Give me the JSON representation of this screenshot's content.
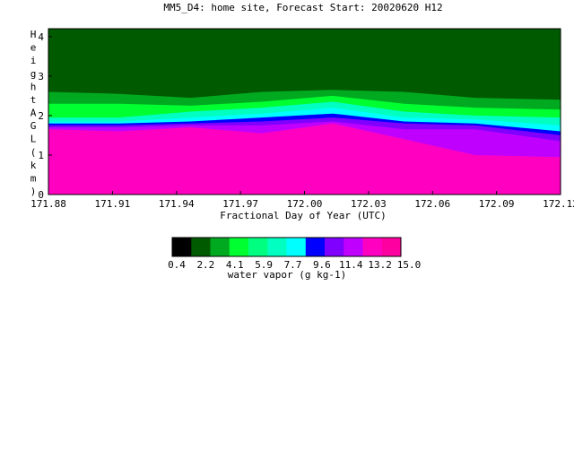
{
  "chart_data": {
    "type": "heatmap",
    "title": "MM5_D4: home site,  Forecast Start: 20020620 H12",
    "xlabel": "Fractional Day of Year (UTC)",
    "ylabel": "Height AGL (km)",
    "xlim": [
      171.88,
      172.12
    ],
    "ylim": [
      0,
      4.2
    ],
    "xticks": [
      "171.88",
      "171.91",
      "171.94",
      "171.97",
      "172.00",
      "172.03",
      "172.06",
      "172.09",
      "172.12"
    ],
    "yticks": [
      "0",
      "1",
      "2",
      "3",
      "4"
    ],
    "x_values": [
      171.88,
      171.9133,
      171.9467,
      171.98,
      172.0133,
      172.0467,
      172.08,
      172.12
    ],
    "layers": [
      {
        "level": 15.0,
        "tops": [
          1.65,
          1.6,
          1.7,
          1.55,
          1.8,
          1.4,
          1.0,
          0.95
        ]
      },
      {
        "level": 13.2,
        "tops": [
          1.7,
          1.7,
          1.75,
          1.75,
          1.85,
          1.65,
          1.65,
          1.35
        ]
      },
      {
        "level": 11.4,
        "tops": [
          1.75,
          1.75,
          1.8,
          1.85,
          1.95,
          1.8,
          1.75,
          1.5
        ]
      },
      {
        "level": 9.6,
        "tops": [
          1.8,
          1.8,
          1.85,
          1.95,
          2.05,
          1.85,
          1.8,
          1.6
        ]
      },
      {
        "level": 7.7,
        "tops": [
          1.85,
          1.85,
          1.95,
          2.05,
          2.2,
          1.95,
          1.9,
          1.75
        ]
      },
      {
        "level": 5.9,
        "tops": [
          1.95,
          1.95,
          2.1,
          2.2,
          2.35,
          2.1,
          2.0,
          1.95
        ]
      },
      {
        "level": 4.1,
        "tops": [
          2.3,
          2.3,
          2.25,
          2.35,
          2.5,
          2.3,
          2.2,
          2.15
        ]
      },
      {
        "level": 2.2,
        "tops": [
          2.6,
          2.55,
          2.45,
          2.6,
          2.65,
          2.6,
          2.45,
          2.4
        ]
      },
      {
        "level": 0.4,
        "tops": [
          4.2,
          4.2,
          4.2,
          4.2,
          4.2,
          4.2,
          4.2,
          4.2
        ]
      }
    ],
    "colorbar": {
      "label": "water vapor (g kg-1)",
      "tick_labels": [
        "0.4",
        "2.2",
        "4.1",
        "5.9",
        "7.7",
        "9.6",
        "11.4",
        "13.2",
        "15.0"
      ],
      "colors": [
        "#000000",
        "#005a00",
        "#00aa20",
        "#00ff30",
        "#00ff80",
        "#00ffc0",
        "#00ffff",
        "#0000ff",
        "#8000ff",
        "#c000ff",
        "#ff00c0",
        "#ff00a0"
      ]
    },
    "fill_colors": {
      "15.0": "#ff00c0",
      "13.2": "#c000ff",
      "11.4": "#8000ff",
      "9.6": "#0000ff",
      "7.7": "#00ffff",
      "5.9": "#00ffc0",
      "4.1": "#00ff30",
      "2.2": "#00aa20",
      "0.4": "#005a00"
    }
  }
}
